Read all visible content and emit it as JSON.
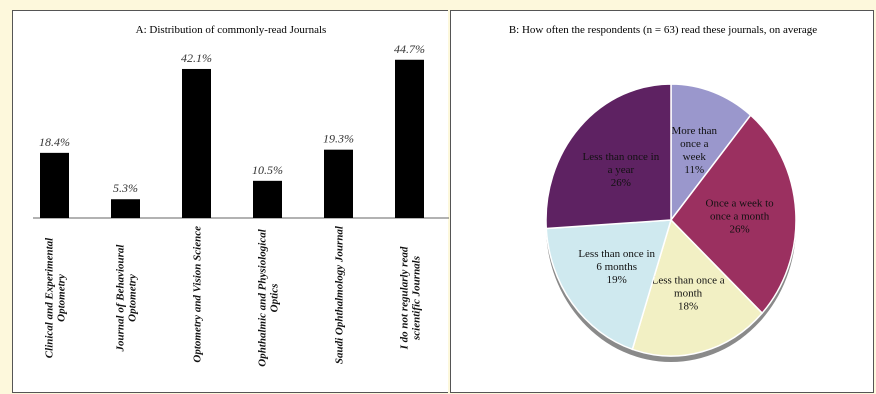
{
  "chart_data": [
    {
      "type": "bar",
      "title": "A: Distribution  of commonly-read  Journals",
      "categories": [
        [
          "Clinical and Experimental",
          "Optometry"
        ],
        [
          "Journal of Behavioural",
          "Optometry"
        ],
        [
          "Optometry and Vision Science"
        ],
        [
          "Ophthalmic and Physiological",
          "Optics"
        ],
        [
          "Saudi Ophthalmology Journal"
        ],
        [
          "I do not regularly read",
          "scientific Journals"
        ]
      ],
      "values": [
        18.4,
        5.3,
        42.1,
        10.5,
        19.3,
        44.7
      ],
      "value_labels": [
        "18.4%",
        "5.3%",
        "42.1%",
        "10.5%",
        "19.3%",
        "44.7%"
      ],
      "ylim": [
        0,
        50
      ],
      "bar_color": "#000000"
    },
    {
      "type": "pie",
      "title": "B: How often the respondents  (n = 63) read these journals,  on average",
      "slices": [
        {
          "label": [
            "More than",
            "once a",
            "week",
            "11%"
          ],
          "value": 11,
          "color": "#9a97cc"
        },
        {
          "label": [
            "Once a week to",
            "once a month",
            "26%"
          ],
          "value": 26,
          "color": "#9b3060"
        },
        {
          "label": [
            "Less than once a",
            "month",
            "18%"
          ],
          "value": 18,
          "color": "#f2f0c4"
        },
        {
          "label": [
            "Less than once in",
            "6 months",
            "19%"
          ],
          "value": 19,
          "color": "#cfe9ef"
        },
        {
          "label": [
            "Less than once in",
            "a year",
            "26%"
          ],
          "value": 26,
          "color": "#5e2262"
        }
      ]
    }
  ]
}
